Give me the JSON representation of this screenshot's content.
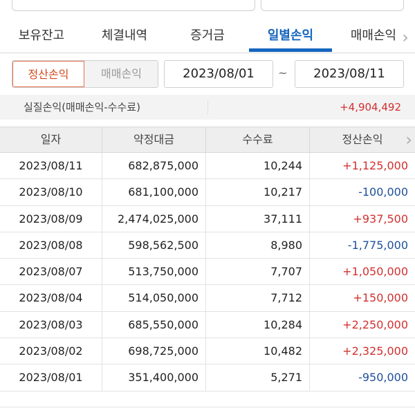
{
  "tabs": [
    {
      "label": "보유잔고"
    },
    {
      "label": "체결내역"
    },
    {
      "label": "증거금"
    },
    {
      "label": "일별손익"
    },
    {
      "label": "매매손익"
    }
  ],
  "filter": {
    "toggle_active": "정산손익",
    "toggle_inactive": "매매손익",
    "date_from": "2023/08/01",
    "date_separator": "~",
    "date_to": "2023/08/11"
  },
  "summary": {
    "label": "실질손익(매매손익-수수료)",
    "value": "+4,904,492"
  },
  "table": {
    "headers": [
      "일자",
      "약정대금",
      "수수료",
      "정산손익"
    ],
    "rows": [
      {
        "date": "2023/08/11",
        "amount": "682,875,000",
        "fee": "10,244",
        "pnl": "+1,125,000",
        "sign": "pos"
      },
      {
        "date": "2023/08/10",
        "amount": "681,100,000",
        "fee": "10,217",
        "pnl": "-100,000",
        "sign": "neg"
      },
      {
        "date": "2023/08/09",
        "amount": "2,474,025,000",
        "fee": "37,111",
        "pnl": "+937,500",
        "sign": "pos"
      },
      {
        "date": "2023/08/08",
        "amount": "598,562,500",
        "fee": "8,980",
        "pnl": "-1,775,000",
        "sign": "neg"
      },
      {
        "date": "2023/08/07",
        "amount": "513,750,000",
        "fee": "7,707",
        "pnl": "+1,050,000",
        "sign": "pos"
      },
      {
        "date": "2023/08/04",
        "amount": "514,050,000",
        "fee": "7,712",
        "pnl": "+150,000",
        "sign": "pos"
      },
      {
        "date": "2023/08/03",
        "amount": "685,550,000",
        "fee": "10,284",
        "pnl": "+2,250,000",
        "sign": "pos"
      },
      {
        "date": "2023/08/02",
        "amount": "698,725,000",
        "fee": "10,482",
        "pnl": "+2,325,000",
        "sign": "pos"
      },
      {
        "date": "2023/08/01",
        "amount": "351,400,000",
        "fee": "5,271",
        "pnl": "-950,000",
        "sign": "neg"
      }
    ]
  },
  "colors": {
    "accent": "#1565c0",
    "positive": "#d32f2f",
    "negative": "#1e4f9c",
    "toggle_active": "#d4491f"
  },
  "icons": {
    "tab_scroll": "chevron-right-icon",
    "header_scroll": "chevron-right-icon"
  }
}
